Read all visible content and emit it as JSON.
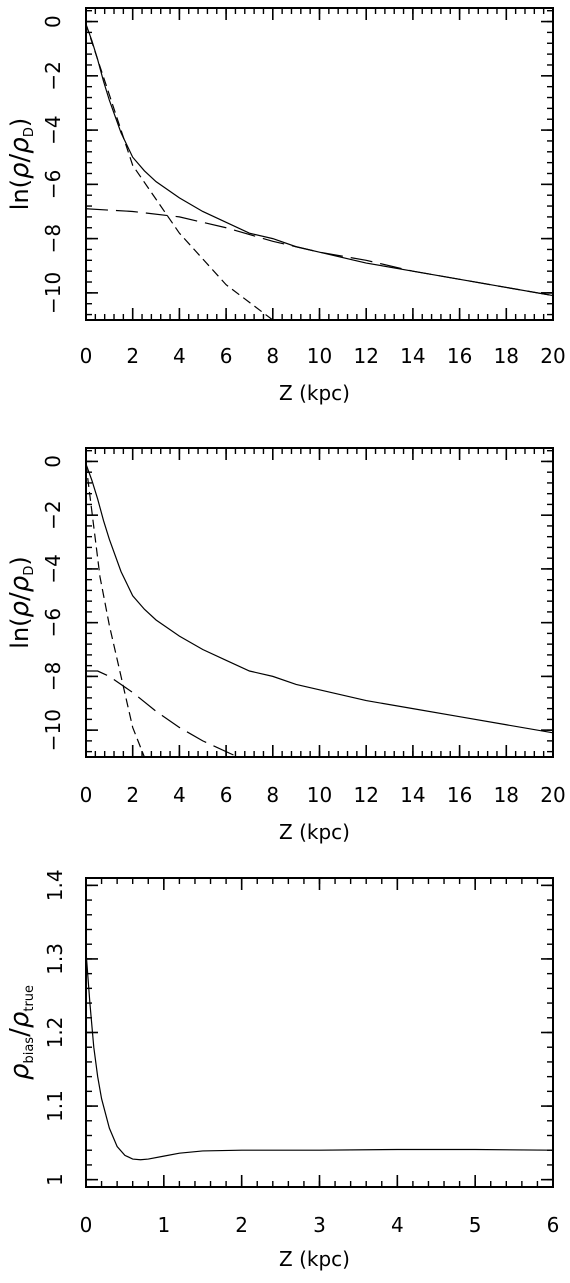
{
  "chart_data": [
    {
      "type": "line",
      "xlabel": "Z (kpc)",
      "ylabel": {
        "prefix": "ln(",
        "rho": "ρ",
        "slash": "/",
        "rho2": "ρ",
        "sub": "D",
        "suffix": ")"
      },
      "xlim": [
        0,
        20
      ],
      "ylim": [
        -11,
        0.5
      ],
      "x_ticks": [
        "0",
        "2",
        "4",
        "6",
        "8",
        "10",
        "12",
        "14",
        "16",
        "18",
        "20"
      ],
      "y_ticks": [
        "0",
        "−2",
        "−4",
        "−6",
        "−8",
        "−10"
      ],
      "grid": false,
      "series": [
        {
          "style": "solid",
          "x": [
            0,
            0.25,
            0.5,
            0.75,
            1,
            1.5,
            2,
            2.5,
            3,
            4,
            5,
            6,
            7,
            8,
            9,
            10,
            12,
            14,
            16,
            18,
            20
          ],
          "y": [
            -0.1,
            -0.7,
            -1.4,
            -2.2,
            -2.9,
            -4.1,
            -5.0,
            -5.5,
            -5.9,
            -6.5,
            -7.0,
            -7.4,
            -7.8,
            -8.0,
            -8.3,
            -8.5,
            -8.9,
            -9.2,
            -9.5,
            -9.8,
            -10.1
          ]
        },
        {
          "style": "short-dash",
          "x": [
            0,
            2,
            4,
            6,
            8
          ],
          "y": [
            -0.1,
            -5.3,
            -7.8,
            -9.7,
            -11.0
          ]
        },
        {
          "style": "long-dash",
          "x": [
            0,
            2,
            4,
            6,
            8,
            10,
            12,
            14,
            16,
            18,
            20
          ],
          "y": [
            -6.9,
            -7.0,
            -7.2,
            -7.6,
            -8.1,
            -8.5,
            -8.8,
            -9.2,
            -9.5,
            -9.8,
            -10.1
          ]
        }
      ]
    },
    {
      "type": "line",
      "xlabel": "Z (kpc)",
      "ylabel": {
        "prefix": "ln(",
        "rho": "ρ",
        "slash": "/",
        "rho2": "ρ",
        "sub": "D",
        "suffix": ")"
      },
      "xlim": [
        0,
        20
      ],
      "ylim": [
        -11,
        0.5
      ],
      "x_ticks": [
        "0",
        "2",
        "4",
        "6",
        "8",
        "10",
        "12",
        "14",
        "16",
        "18",
        "20"
      ],
      "y_ticks": [
        "0",
        "−2",
        "−4",
        "−6",
        "−8",
        "−10"
      ],
      "grid": false,
      "series": [
        {
          "style": "solid",
          "x": [
            0,
            0.25,
            0.5,
            0.75,
            1,
            1.5,
            2,
            2.5,
            3,
            4,
            5,
            6,
            7,
            8,
            9,
            10,
            12,
            14,
            16,
            18,
            20
          ],
          "y": [
            -0.1,
            -0.7,
            -1.4,
            -2.2,
            -2.9,
            -4.1,
            -5.0,
            -5.5,
            -5.9,
            -6.5,
            -7.0,
            -7.4,
            -7.8,
            -8.0,
            -8.3,
            -8.5,
            -8.9,
            -9.2,
            -9.5,
            -9.8,
            -10.1
          ]
        },
        {
          "style": "short-dash",
          "x": [
            0,
            0.3,
            0.6,
            1.0,
            1.5,
            2.0,
            2.5
          ],
          "y": [
            -0.1,
            -2.2,
            -4.3,
            -6.1,
            -8.0,
            -9.9,
            -11.0
          ]
        },
        {
          "style": "long-dash",
          "x": [
            0,
            0.5,
            1,
            2,
            3,
            4,
            5,
            6.5
          ],
          "y": [
            -7.8,
            -7.8,
            -8.0,
            -8.6,
            -9.3,
            -9.9,
            -10.4,
            -11.0
          ]
        }
      ]
    },
    {
      "type": "line",
      "xlabel": "Z (kpc)",
      "ylabel": {
        "rho": "ρ",
        "sub1": "bias",
        "slash": "/",
        "rho2": "ρ",
        "sub2": "true"
      },
      "xlim": [
        0,
        6
      ],
      "ylim": [
        0.99,
        1.41
      ],
      "x_ticks": [
        "0",
        "1",
        "2",
        "3",
        "4",
        "5",
        "6"
      ],
      "y_ticks": [
        "1",
        "1.1",
        "1.2",
        "1.3",
        "1.4"
      ],
      "grid": false,
      "series": [
        {
          "style": "solid",
          "x": [
            0,
            0.05,
            0.1,
            0.15,
            0.2,
            0.3,
            0.4,
            0.5,
            0.6,
            0.7,
            0.8,
            1.0,
            1.2,
            1.5,
            2,
            3,
            4,
            5,
            6
          ],
          "y": [
            1.31,
            1.24,
            1.18,
            1.14,
            1.11,
            1.07,
            1.045,
            1.033,
            1.028,
            1.027,
            1.028,
            1.032,
            1.036,
            1.039,
            1.04,
            1.04,
            1.041,
            1.041,
            1.04
          ]
        }
      ]
    }
  ]
}
